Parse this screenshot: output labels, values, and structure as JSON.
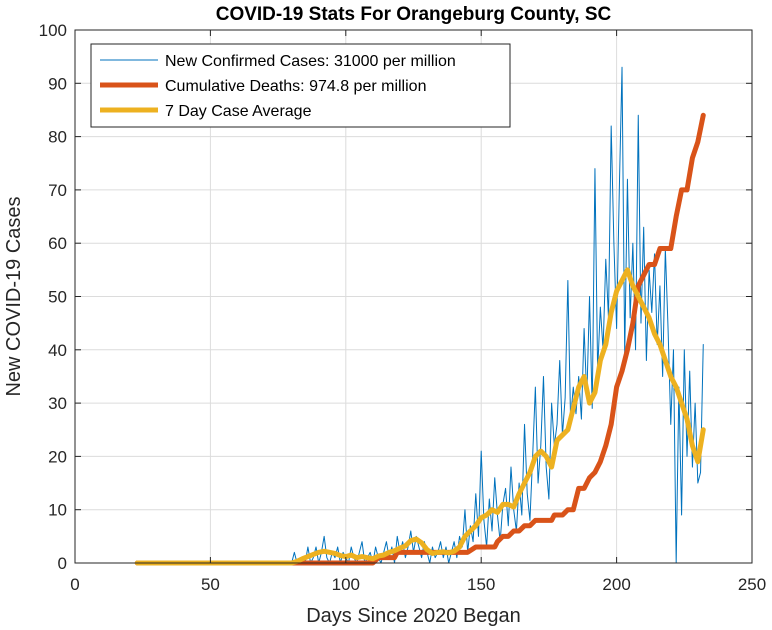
{
  "chart_data": {
    "type": "line",
    "title": "COVID-19 Stats For Orangeburg County, SC",
    "xlabel": "Days Since 2020 Began",
    "ylabel": "New COVID-19 Cases",
    "xlim": [
      0,
      250
    ],
    "ylim": [
      0,
      100
    ],
    "xticks": [
      0,
      50,
      100,
      150,
      200,
      250
    ],
    "yticks": [
      0,
      10,
      20,
      30,
      40,
      50,
      60,
      70,
      80,
      90,
      100
    ],
    "grid": true,
    "legend_position": "top-left",
    "series": [
      {
        "name": "New Confirmed Cases: 31000 per million",
        "color": "#0072BD",
        "points": [
          [
            23,
            0
          ],
          [
            60,
            0
          ],
          [
            80,
            0
          ],
          [
            81,
            2
          ],
          [
            82,
            0
          ],
          [
            84,
            1
          ],
          [
            85,
            0
          ],
          [
            86,
            3
          ],
          [
            87,
            0
          ],
          [
            88,
            1
          ],
          [
            89,
            3
          ],
          [
            90,
            0
          ],
          [
            91,
            2
          ],
          [
            92,
            5
          ],
          [
            93,
            1
          ],
          [
            94,
            0
          ],
          [
            95,
            2
          ],
          [
            96,
            1
          ],
          [
            97,
            3
          ],
          [
            98,
            0
          ],
          [
            99,
            2
          ],
          [
            100,
            1
          ],
          [
            101,
            0
          ],
          [
            102,
            3
          ],
          [
            103,
            1
          ],
          [
            104,
            0
          ],
          [
            105,
            2
          ],
          [
            106,
            4
          ],
          [
            107,
            0
          ],
          [
            108,
            1
          ],
          [
            109,
            2
          ],
          [
            110,
            0
          ],
          [
            111,
            3
          ],
          [
            112,
            1
          ],
          [
            113,
            0
          ],
          [
            114,
            2
          ],
          [
            115,
            4
          ],
          [
            116,
            1
          ],
          [
            117,
            3
          ],
          [
            118,
            0
          ],
          [
            119,
            5
          ],
          [
            120,
            2
          ],
          [
            121,
            4
          ],
          [
            122,
            1
          ],
          [
            123,
            3
          ],
          [
            124,
            6
          ],
          [
            125,
            2
          ],
          [
            126,
            5
          ],
          [
            127,
            3
          ],
          [
            128,
            1
          ],
          [
            129,
            4
          ],
          [
            130,
            2
          ],
          [
            131,
            0
          ],
          [
            132,
            3
          ],
          [
            133,
            1
          ],
          [
            134,
            2
          ],
          [
            135,
            4
          ],
          [
            136,
            1
          ],
          [
            137,
            3
          ],
          [
            138,
            0
          ],
          [
            139,
            2
          ],
          [
            140,
            4
          ],
          [
            141,
            1
          ],
          [
            142,
            5
          ],
          [
            143,
            3
          ],
          [
            144,
            10
          ],
          [
            145,
            2
          ],
          [
            146,
            7
          ],
          [
            147,
            4
          ],
          [
            148,
            13
          ],
          [
            149,
            5
          ],
          [
            150,
            21
          ],
          [
            151,
            8
          ],
          [
            152,
            3
          ],
          [
            153,
            12
          ],
          [
            154,
            6
          ],
          [
            155,
            16
          ],
          [
            156,
            9
          ],
          [
            157,
            4
          ],
          [
            158,
            11
          ],
          [
            159,
            14
          ],
          [
            160,
            7
          ],
          [
            161,
            18
          ],
          [
            162,
            10
          ],
          [
            163,
            6
          ],
          [
            164,
            15
          ],
          [
            165,
            9
          ],
          [
            166,
            26
          ],
          [
            167,
            13
          ],
          [
            168,
            8
          ],
          [
            169,
            20
          ],
          [
            170,
            33
          ],
          [
            171,
            15
          ],
          [
            172,
            22
          ],
          [
            173,
            35
          ],
          [
            174,
            18
          ],
          [
            175,
            12
          ],
          [
            176,
            30
          ],
          [
            177,
            22
          ],
          [
            178,
            26
          ],
          [
            179,
            38
          ],
          [
            180,
            24
          ],
          [
            181,
            31
          ],
          [
            182,
            53
          ],
          [
            183,
            27
          ],
          [
            184,
            33
          ],
          [
            185,
            28
          ],
          [
            186,
            35
          ],
          [
            187,
            27
          ],
          [
            188,
            44
          ],
          [
            189,
            31
          ],
          [
            190,
            50
          ],
          [
            191,
            29
          ],
          [
            192,
            74
          ],
          [
            193,
            36
          ],
          [
            194,
            48
          ],
          [
            195,
            40
          ],
          [
            196,
            57
          ],
          [
            197,
            46
          ],
          [
            198,
            82
          ],
          [
            199,
            60
          ],
          [
            200,
            44
          ],
          [
            201,
            70
          ],
          [
            202,
            93
          ],
          [
            203,
            39
          ],
          [
            204,
            72
          ],
          [
            205,
            46
          ],
          [
            206,
            60
          ],
          [
            207,
            40
          ],
          [
            208,
            84
          ],
          [
            209,
            45
          ],
          [
            210,
            63
          ],
          [
            211,
            38
          ],
          [
            212,
            55
          ],
          [
            213,
            47
          ],
          [
            214,
            58
          ],
          [
            215,
            41
          ],
          [
            216,
            52
          ],
          [
            217,
            35
          ],
          [
            218,
            59
          ],
          [
            219,
            44
          ],
          [
            220,
            26
          ],
          [
            221,
            40
          ],
          [
            222,
            0
          ],
          [
            223,
            33
          ],
          [
            224,
            9
          ],
          [
            225,
            40
          ],
          [
            226,
            20
          ],
          [
            227,
            36
          ],
          [
            228,
            18
          ],
          [
            229,
            30
          ],
          [
            230,
            15
          ],
          [
            231,
            17
          ],
          [
            232,
            41
          ]
        ]
      },
      {
        "name": "Cumulative Deaths: 974.8 per million",
        "color": "#D95319",
        "points": [
          [
            23,
            0
          ],
          [
            60,
            0
          ],
          [
            90,
            0
          ],
          [
            100,
            0
          ],
          [
            110,
            0
          ],
          [
            112,
            1
          ],
          [
            118,
            1
          ],
          [
            119,
            2
          ],
          [
            135,
            2
          ],
          [
            136,
            2
          ],
          [
            144,
            2
          ],
          [
            145,
            2
          ],
          [
            148,
            3
          ],
          [
            155,
            3
          ],
          [
            156,
            4
          ],
          [
            158,
            5
          ],
          [
            160,
            5
          ],
          [
            162,
            6
          ],
          [
            164,
            6
          ],
          [
            166,
            7
          ],
          [
            168,
            7
          ],
          [
            170,
            8
          ],
          [
            176,
            8
          ],
          [
            177,
            9
          ],
          [
            180,
            9
          ],
          [
            182,
            10
          ],
          [
            184,
            10
          ],
          [
            186,
            14
          ],
          [
            188,
            14
          ],
          [
            190,
            16
          ],
          [
            192,
            17
          ],
          [
            194,
            19
          ],
          [
            196,
            22
          ],
          [
            198,
            26
          ],
          [
            200,
            33
          ],
          [
            202,
            36
          ],
          [
            204,
            40
          ],
          [
            206,
            45
          ],
          [
            208,
            52
          ],
          [
            210,
            54
          ],
          [
            212,
            56
          ],
          [
            214,
            56
          ],
          [
            216,
            59
          ],
          [
            220,
            59
          ],
          [
            222,
            65
          ],
          [
            224,
            70
          ],
          [
            226,
            70
          ],
          [
            228,
            76
          ],
          [
            230,
            79
          ],
          [
            232,
            84
          ]
        ]
      },
      {
        "name": "7 Day Case Average",
        "color": "#EDB120",
        "points": [
          [
            23,
            0
          ],
          [
            60,
            0
          ],
          [
            80,
            0
          ],
          [
            82,
            0.3
          ],
          [
            84,
            0.8
          ],
          [
            86,
            1.2
          ],
          [
            88,
            1.6
          ],
          [
            90,
            2
          ],
          [
            92,
            2.2
          ],
          [
            94,
            2
          ],
          [
            96,
            1.8
          ],
          [
            98,
            1.4
          ],
          [
            100,
            1.2
          ],
          [
            102,
            1.5
          ],
          [
            104,
            1
          ],
          [
            106,
            1.2
          ],
          [
            108,
            1
          ],
          [
            110,
            0.8
          ],
          [
            112,
            1.3
          ],
          [
            114,
            1.5
          ],
          [
            116,
            2
          ],
          [
            118,
            2.3
          ],
          [
            120,
            2.8
          ],
          [
            122,
            3.2
          ],
          [
            124,
            4.2
          ],
          [
            126,
            4.5
          ],
          [
            128,
            3.8
          ],
          [
            130,
            2.5
          ],
          [
            132,
            1.8
          ],
          [
            134,
            2
          ],
          [
            136,
            2.1
          ],
          [
            138,
            1.9
          ],
          [
            140,
            2.2
          ],
          [
            142,
            3
          ],
          [
            144,
            5
          ],
          [
            146,
            6
          ],
          [
            148,
            7
          ],
          [
            150,
            8.5
          ],
          [
            152,
            9
          ],
          [
            154,
            10
          ],
          [
            156,
            9.5
          ],
          [
            158,
            11
          ],
          [
            160,
            11
          ],
          [
            162,
            10.5
          ],
          [
            164,
            13
          ],
          [
            166,
            15
          ],
          [
            168,
            17
          ],
          [
            170,
            20
          ],
          [
            172,
            21
          ],
          [
            174,
            20
          ],
          [
            176,
            18
          ],
          [
            178,
            23
          ],
          [
            180,
            24
          ],
          [
            182,
            25
          ],
          [
            184,
            29
          ],
          [
            186,
            33
          ],
          [
            188,
            35
          ],
          [
            190,
            30
          ],
          [
            192,
            32
          ],
          [
            194,
            38
          ],
          [
            196,
            41
          ],
          [
            198,
            47
          ],
          [
            200,
            51
          ],
          [
            202,
            53
          ],
          [
            204,
            55
          ],
          [
            206,
            52
          ],
          [
            208,
            50
          ],
          [
            210,
            48
          ],
          [
            212,
            46
          ],
          [
            214,
            43
          ],
          [
            216,
            41
          ],
          [
            218,
            38
          ],
          [
            220,
            35
          ],
          [
            222,
            33
          ],
          [
            224,
            30
          ],
          [
            226,
            27
          ],
          [
            228,
            22
          ],
          [
            230,
            19
          ],
          [
            232,
            25
          ]
        ]
      }
    ]
  }
}
